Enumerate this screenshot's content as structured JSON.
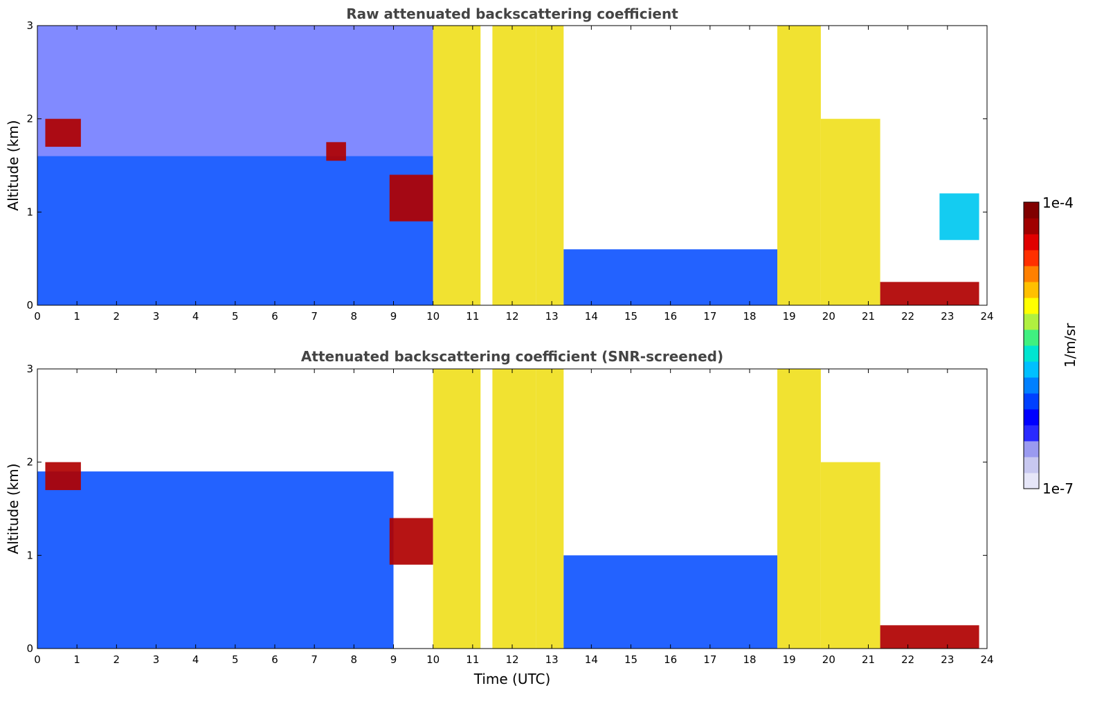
{
  "chart_data": [
    {
      "type": "heatmap",
      "title": "Raw attenuated backscattering coefficient",
      "xlabel": "",
      "ylabel": "Altitude (km)",
      "xlim": [
        0,
        24
      ],
      "ylim": [
        0,
        3
      ],
      "x_ticks": [
        "0",
        "1",
        "2",
        "3",
        "4",
        "5",
        "6",
        "7",
        "8",
        "9",
        "10",
        "11",
        "12",
        "13",
        "14",
        "15",
        "16",
        "17",
        "18",
        "19",
        "20",
        "21",
        "22",
        "23",
        "24"
      ],
      "y_ticks": [
        "0",
        "1",
        "2",
        "3"
      ],
      "grid": false,
      "features": [
        {
          "x": [
            0,
            10
          ],
          "y": [
            0,
            1.6
          ],
          "level": "low"
        },
        {
          "x": [
            0,
            10
          ],
          "y": [
            1.6,
            3
          ],
          "level": "noise"
        },
        {
          "x": [
            0.2,
            1.1
          ],
          "y": [
            1.7,
            2.0
          ],
          "level": "very-high"
        },
        {
          "x": [
            7.3,
            7.8
          ],
          "y": [
            1.55,
            1.75
          ],
          "level": "very-high"
        },
        {
          "x": [
            8.9,
            10
          ],
          "y": [
            0.9,
            1.4
          ],
          "level": "very-high"
        },
        {
          "x": [
            10,
            11.2
          ],
          "y": [
            0,
            3
          ],
          "level": "high"
        },
        {
          "x": [
            11.5,
            12.6
          ],
          "y": [
            0,
            3
          ],
          "level": "high"
        },
        {
          "x": [
            12.6,
            13.3
          ],
          "y": [
            0,
            3
          ],
          "level": "high"
        },
        {
          "x": [
            13.3,
            18.7
          ],
          "y": [
            0,
            0.6
          ],
          "level": "low"
        },
        {
          "x": [
            18.7,
            19.8
          ],
          "y": [
            0,
            3
          ],
          "level": "high"
        },
        {
          "x": [
            19.8,
            21.3
          ],
          "y": [
            0,
            2.0
          ],
          "level": "high"
        },
        {
          "x": [
            21.3,
            23.8
          ],
          "y": [
            0,
            0.25
          ],
          "level": "very-high"
        },
        {
          "x": [
            22.8,
            23.8
          ],
          "y": [
            0.7,
            1.2
          ],
          "level": "medium"
        }
      ]
    },
    {
      "type": "heatmap",
      "title": "Attenuated backscattering coefficient (SNR-screened)",
      "xlabel": "Time (UTC)",
      "ylabel": "Altitude (km)",
      "xlim": [
        0,
        24
      ],
      "ylim": [
        0,
        3
      ],
      "x_ticks": [
        "0",
        "1",
        "2",
        "3",
        "4",
        "5",
        "6",
        "7",
        "8",
        "9",
        "10",
        "11",
        "12",
        "13",
        "14",
        "15",
        "16",
        "17",
        "18",
        "19",
        "20",
        "21",
        "22",
        "23",
        "24"
      ],
      "y_ticks": [
        "0",
        "1",
        "2",
        "3"
      ],
      "grid": false,
      "features": [
        {
          "x": [
            0,
            9
          ],
          "y": [
            0,
            1.9
          ],
          "level": "low"
        },
        {
          "x": [
            0.2,
            1.1
          ],
          "y": [
            1.7,
            2.0
          ],
          "level": "very-high"
        },
        {
          "x": [
            8.9,
            10
          ],
          "y": [
            0.9,
            1.4
          ],
          "level": "very-high"
        },
        {
          "x": [
            10,
            11.2
          ],
          "y": [
            0,
            3
          ],
          "level": "high"
        },
        {
          "x": [
            11.5,
            12.6
          ],
          "y": [
            0,
            3
          ],
          "level": "high"
        },
        {
          "x": [
            12.6,
            13.3
          ],
          "y": [
            0,
            3
          ],
          "level": "high"
        },
        {
          "x": [
            13.3,
            18.7
          ],
          "y": [
            0,
            1.0
          ],
          "level": "low"
        },
        {
          "x": [
            18.7,
            19.8
          ],
          "y": [
            0,
            3
          ],
          "level": "high"
        },
        {
          "x": [
            19.8,
            21.3
          ],
          "y": [
            0,
            2.0
          ],
          "level": "high"
        },
        {
          "x": [
            21.3,
            23.8
          ],
          "y": [
            0,
            0.25
          ],
          "level": "very-high"
        }
      ]
    }
  ],
  "colorbar": {
    "label": "1/m/sr",
    "max_label": "1e-4",
    "min_label": "1e-7",
    "colors": [
      "#e6e6f8",
      "#c8c8f0",
      "#9a9af0",
      "#2a2aff",
      "#0000ff",
      "#0040ff",
      "#0080ff",
      "#00c0ff",
      "#00e5d0",
      "#40f080",
      "#b0f040",
      "#ffff00",
      "#ffc000",
      "#ff8000",
      "#ff3000",
      "#e00000",
      "#a00000",
      "#800000"
    ]
  },
  "level_colors": {
    "noise": "#1a2aff",
    "low": "#1055ff",
    "medium": "#00c8f0",
    "high": "#f0e020",
    "very-high": "#b00000"
  }
}
